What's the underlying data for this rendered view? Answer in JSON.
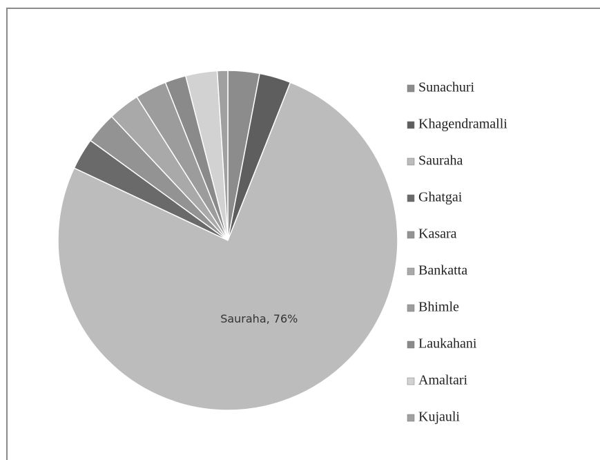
{
  "chart_data": {
    "type": "pie",
    "categories": [
      "Sunachuri",
      "Khagendramalli",
      "Sauraha",
      "Ghatgai",
      "Kasara",
      "Bankatta",
      "Bhimle",
      "Laukahani",
      "Amaltari",
      "Kujauli"
    ],
    "values": [
      3,
      3,
      76,
      3,
      3,
      3,
      3,
      2,
      3,
      1
    ],
    "value_labels": [
      null,
      null,
      "Sauraha, 76%",
      null,
      null,
      null,
      null,
      null,
      null,
      null
    ],
    "colors": [
      "#8c8c8c",
      "#5e5e5e",
      "#bcbcbc",
      "#6a6a6a",
      "#939393",
      "#a9a9a9",
      "#9c9c9c",
      "#8a8a8a",
      "#d2d2d2",
      "#a0a0a0"
    ],
    "legend": "right"
  }
}
